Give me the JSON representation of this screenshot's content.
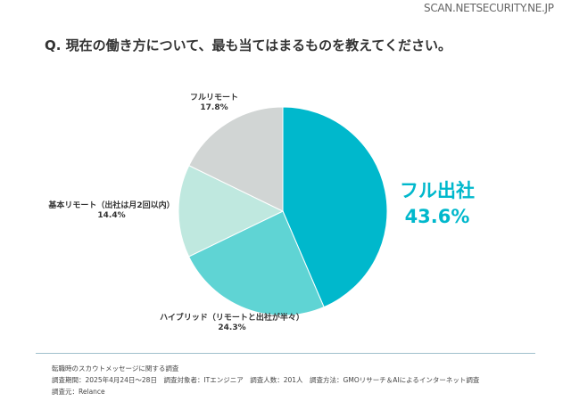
{
  "watermark": "SCAN.NETSECURITY.NE.JP",
  "title": "Q. 現在の働き方について、最も当てはまるものを教えてください。",
  "chart_data": {
    "type": "pie",
    "title": "Q. 現在の働き方について、最も当てはまるものを教えてください。",
    "slices": [
      {
        "label": "フル出社",
        "value": 43.6,
        "display": "43.6%",
        "color": "#00b8cc"
      },
      {
        "label": "ハイブリッド（リモートと出社が半々）",
        "value": 24.3,
        "display": "24.3%",
        "color": "#5fd4d4"
      },
      {
        "label": "基本リモート（出社は月2回以内）",
        "value": 14.4,
        "display": "14.4%",
        "color": "#bfe8df"
      },
      {
        "label": "フルリモート",
        "value": 17.8,
        "display": "17.8%",
        "color": "#d1d5d4"
      }
    ],
    "start": "top",
    "direction": "clockwise"
  },
  "footer": {
    "line1": "転職時のスカウトメッセージに関する調査",
    "line2": "調査期間：2025年4月24日〜28日　調査対象者：ITエンジニア　調査人数：201人　調査方法：GMOリサーチ＆AIによるインターネット調査",
    "line3": "調査元：Relance"
  }
}
